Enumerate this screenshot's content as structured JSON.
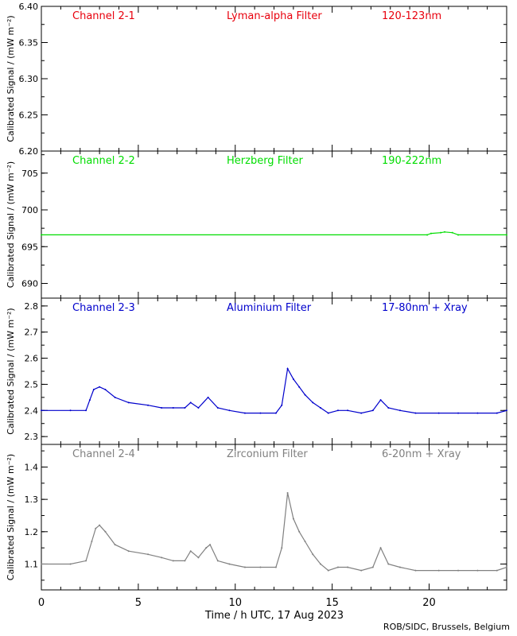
{
  "figure": {
    "xlabel": "Time / h UTC, 17 Aug 2023",
    "credit": "ROB/SIDC, Brussels, Belgium",
    "x_ticks": [
      0,
      5,
      10,
      15,
      20
    ],
    "xlim": [
      0,
      24
    ]
  },
  "chart_data": [
    {
      "type": "scatter",
      "channel": "Channel 2-1",
      "filter": "Lyman-alpha Filter",
      "band": "120-123nm",
      "color": "#e8000d",
      "ylabel": "Calibrated Signal / (mW m⁻²)",
      "ylim": [
        6.2,
        6.4
      ],
      "y_ticks": [
        "6.20",
        "6.25",
        "6.30",
        "6.35",
        "6.40"
      ],
      "x": [],
      "values": []
    },
    {
      "type": "scatter",
      "channel": "Channel 2-2",
      "filter": "Herzberg Filter",
      "band": "190-222nm",
      "color": "#00dd00",
      "ylabel": "Calibrated Signal / (mW m⁻²)",
      "ylim": [
        688,
        708
      ],
      "y_ticks": [
        "690",
        "695",
        "700",
        "705"
      ],
      "x": [
        0,
        19.9,
        20.1,
        20.6,
        20.8,
        21.2,
        21.5,
        24
      ],
      "values": [
        696.6,
        696.6,
        696.8,
        696.9,
        697.0,
        696.9,
        696.6,
        696.6
      ]
    },
    {
      "type": "scatter",
      "channel": "Channel 2-3",
      "filter": "Aluminium Filter",
      "band": "17-80nm + Xray",
      "color": "#0000cc",
      "ylabel": "Calibrated Signal / (mW m⁻²)",
      "ylim": [
        2.27,
        2.83
      ],
      "y_ticks": [
        "2.3",
        "2.4",
        "2.5",
        "2.6",
        "2.7",
        "2.8"
      ],
      "x": [
        0,
        1.5,
        2.3,
        2.5,
        2.7,
        3.0,
        3.3,
        3.8,
        4.5,
        5.5,
        6.2,
        6.8,
        7.4,
        7.7,
        8.1,
        8.6,
        9.1,
        9.7,
        10.5,
        11.3,
        12.1,
        12.4,
        12.7,
        13.0,
        13.3,
        13.6,
        14.0,
        14.4,
        14.8,
        15.3,
        15.8,
        16.5,
        17.1,
        17.5,
        17.9,
        18.5,
        19.3,
        20.5,
        21.5,
        22.5,
        23.5,
        24
      ],
      "values": [
        2.4,
        2.4,
        2.4,
        2.44,
        2.48,
        2.49,
        2.48,
        2.45,
        2.43,
        2.42,
        2.41,
        2.41,
        2.41,
        2.43,
        2.41,
        2.45,
        2.41,
        2.4,
        2.39,
        2.39,
        2.39,
        2.42,
        2.56,
        2.52,
        2.49,
        2.46,
        2.43,
        2.41,
        2.39,
        2.4,
        2.4,
        2.39,
        2.4,
        2.44,
        2.41,
        2.4,
        2.39,
        2.39,
        2.39,
        2.39,
        2.39,
        2.4
      ]
    },
    {
      "type": "scatter",
      "channel": "Channel 2-4",
      "filter": "Zirconium Filter",
      "band": "6-20nm + Xray",
      "color": "#808080",
      "ylabel": "Calibrated Signal / (mW m⁻²)",
      "ylim": [
        1.02,
        1.47
      ],
      "y_ticks": [
        "1.1",
        "1.2",
        "1.3",
        "1.4"
      ],
      "x": [
        0,
        1.5,
        2.3,
        2.6,
        2.8,
        3.0,
        3.3,
        3.8,
        4.5,
        5.5,
        6.2,
        6.8,
        7.4,
        7.7,
        8.1,
        8.5,
        8.7,
        9.1,
        9.7,
        10.5,
        11.3,
        12.1,
        12.4,
        12.7,
        13.0,
        13.3,
        13.6,
        14.0,
        14.4,
        14.8,
        15.3,
        15.8,
        16.5,
        17.1,
        17.5,
        17.9,
        18.5,
        19.3,
        20.5,
        21.5,
        22.5,
        23.5,
        24
      ],
      "values": [
        1.1,
        1.1,
        1.11,
        1.17,
        1.21,
        1.22,
        1.2,
        1.16,
        1.14,
        1.13,
        1.12,
        1.11,
        1.11,
        1.14,
        1.12,
        1.15,
        1.16,
        1.11,
        1.1,
        1.09,
        1.09,
        1.09,
        1.15,
        1.32,
        1.24,
        1.2,
        1.17,
        1.13,
        1.1,
        1.08,
        1.09,
        1.09,
        1.08,
        1.09,
        1.15,
        1.1,
        1.09,
        1.08,
        1.08,
        1.08,
        1.08,
        1.08,
        1.09
      ]
    }
  ]
}
